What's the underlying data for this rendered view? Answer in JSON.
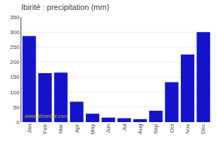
{
  "chart_data": {
    "type": "bar",
    "title": "Ibirité : precipitation (mm)",
    "categories": [
      "Jan",
      "Feb",
      "Mar",
      "Apr",
      "May",
      "Jun",
      "Jul",
      "Aug",
      "Sep",
      "Oct",
      "Nov",
      "Dec"
    ],
    "values": [
      287,
      163,
      165,
      68,
      28,
      15,
      13,
      10,
      38,
      133,
      225,
      300
    ],
    "color": "#1414cc",
    "ylim": [
      0,
      350
    ],
    "yticks": [
      0,
      50,
      100,
      150,
      200,
      250,
      300,
      350
    ],
    "grid": true,
    "annotations": [
      "www.allmetsat.com"
    ]
  }
}
